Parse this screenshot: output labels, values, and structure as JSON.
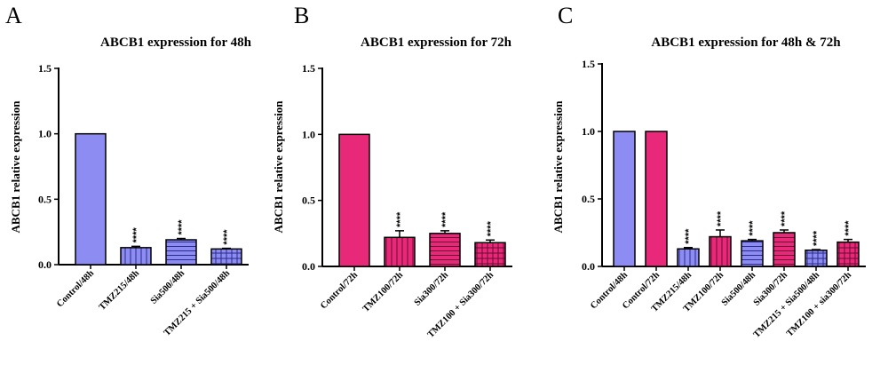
{
  "chart_data": [
    {
      "panel": "A",
      "type": "bar",
      "title": "ABCB1 expression for 48h",
      "ylabel": "ABCB1 relative expression",
      "ylim": [
        0,
        1.5
      ],
      "yticks": [
        "0.0",
        "0.5",
        "1.0",
        "1.5"
      ],
      "categories": [
        "Control/48h",
        "TMZ215/48h",
        "Sia500/48h",
        "TMZ215 + Sia500/48h"
      ],
      "values": [
        1.0,
        0.13,
        0.19,
        0.12
      ],
      "errors": [
        0,
        0.01,
        0.01,
        0.005
      ],
      "significance": [
        "",
        "****",
        "****",
        "****"
      ],
      "colors": [
        "#8c8cf2",
        "#8c8cf2",
        "#8c8cf2",
        "#8c8cf2"
      ],
      "patterns": [
        "solid",
        "vlines",
        "hlines",
        "grid"
      ]
    },
    {
      "panel": "B",
      "type": "bar",
      "title": "ABCB1 expression for 72h",
      "ylabel": "ABCB1 relative expression",
      "ylim": [
        0,
        1.5
      ],
      "yticks": [
        "0.0",
        "0.5",
        "1.0",
        "1.5"
      ],
      "categories": [
        "Control/72h",
        "TMZ100/72h",
        "Sia300/72h",
        "TMZ100 + Sia300/72h"
      ],
      "values": [
        1.0,
        0.22,
        0.25,
        0.18
      ],
      "errors": [
        0,
        0.05,
        0.02,
        0.02
      ],
      "significance": [
        "",
        "****",
        "****",
        "****"
      ],
      "colors": [
        "#e8297a",
        "#e8297a",
        "#e8297a",
        "#e8297a"
      ],
      "patterns": [
        "solid",
        "vlines",
        "hlines",
        "grid"
      ]
    },
    {
      "panel": "C",
      "type": "bar",
      "title": "ABCB1 expression for 48h & 72h",
      "ylabel": "ABCB1 relative expression",
      "ylim": [
        0,
        1.5
      ],
      "yticks": [
        "0.0",
        "0.5",
        "1.0",
        "1.5"
      ],
      "categories": [
        "Control/48h",
        "Control/72h",
        "TMZ215/48h",
        "TMZ100/72h",
        "Sia500/48h",
        "Sia300/72h",
        "TMZ215 + Sia500/48h",
        "TMZ100 + sia300/72h"
      ],
      "values": [
        1.0,
        1.0,
        0.13,
        0.22,
        0.19,
        0.25,
        0.12,
        0.18
      ],
      "errors": [
        0,
        0,
        0.01,
        0.05,
        0.01,
        0.02,
        0.005,
        0.02
      ],
      "significance": [
        "",
        "",
        "****",
        "****",
        "****",
        "****",
        "****",
        "****"
      ],
      "colors": [
        "#8c8cf2",
        "#e8297a",
        "#8c8cf2",
        "#e8297a",
        "#8c8cf2",
        "#e8297a",
        "#8c8cf2",
        "#e8297a"
      ],
      "patterns": [
        "solid",
        "solid",
        "vlines",
        "vlines",
        "hlines",
        "hlines",
        "grid",
        "grid"
      ]
    }
  ]
}
